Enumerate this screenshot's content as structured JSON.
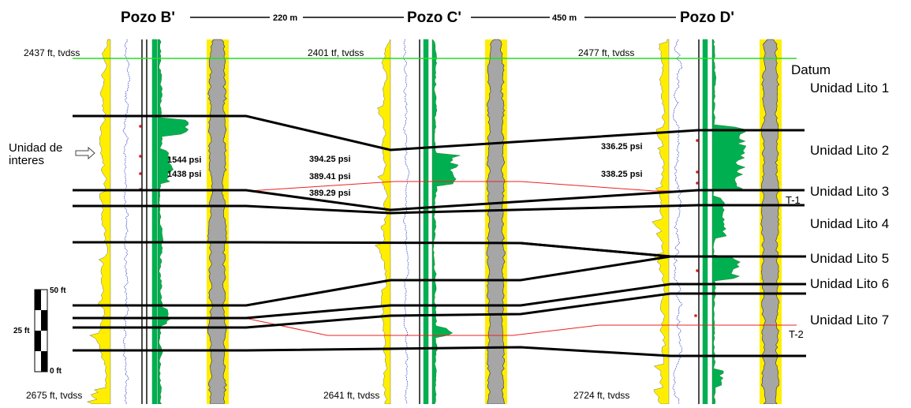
{
  "wells": [
    {
      "name": "Pozo B'",
      "top": "2437 ft, tvdss",
      "bottom": "2675 ft, tvdss",
      "pressures": [
        "1544 psi",
        "1438 psi"
      ]
    },
    {
      "name": "Pozo C'",
      "top": "2401 tf, tvdss",
      "bottom": "2641 ft, tvdss",
      "pressures": [
        "394.25 psi",
        "389.41 psi",
        "389.29 psi"
      ]
    },
    {
      "name": "Pozo D'",
      "top": "2477 ft, tvdss",
      "bottom": "2724 ft, tvdss",
      "pressures": [
        "336.25 psi",
        "338.25 psi"
      ]
    }
  ],
  "distances": [
    "220 m",
    "450 m"
  ],
  "datum_label": "Datum",
  "units": [
    "Unidad Lito 1",
    "Unidad Lito 2",
    "Unidad Lito 3",
    "Unidad Lito 4",
    "Unidad Lito 5",
    "Unidad Lito 6",
    "Unidad Lito 7"
  ],
  "faults": [
    "T-1",
    "T-2"
  ],
  "interest": {
    "line1": "Unidad de",
    "line2": "interes"
  },
  "scale": {
    "top": "50 ft",
    "mid": "25 ft",
    "bottom": "0 ft"
  },
  "colors": {
    "datum": "#22dd22",
    "gamma": "#ffee00",
    "resist": "#00b050",
    "porosity": "#a6a6a6",
    "correlation": "#000000",
    "fault": "#ee2222",
    "curve": "#2233cc"
  }
}
